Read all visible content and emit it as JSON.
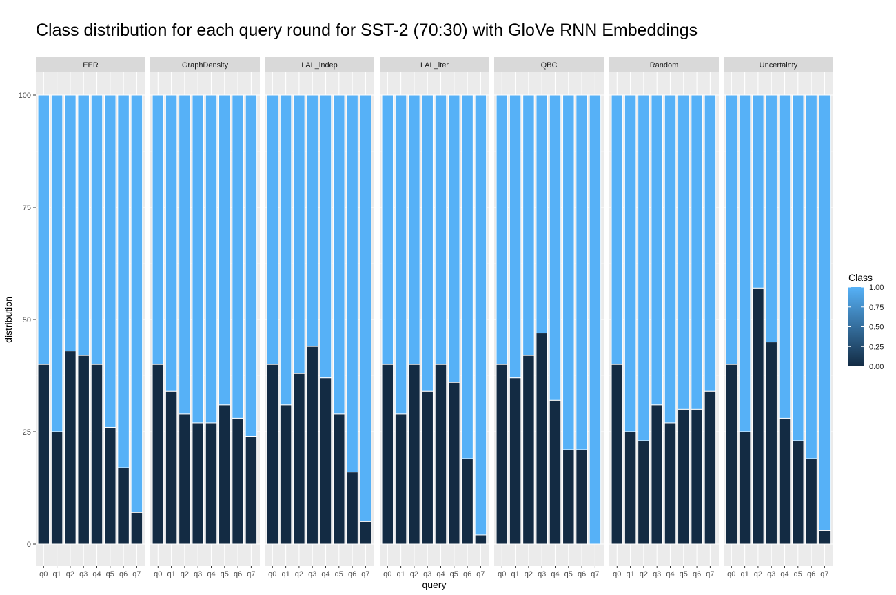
{
  "chart_data": {
    "type": "bar",
    "stacked": true,
    "faceted": true,
    "title": "Class distribution for each query round for SST-2 (70:30) with GloVe RNN Embeddings",
    "xlabel": "query",
    "ylabel": "distribution",
    "ylim": [
      0,
      100
    ],
    "yticks": [
      0,
      25,
      50,
      75,
      100
    ],
    "categories": [
      "q0",
      "q1",
      "q2",
      "q3",
      "q4",
      "q5",
      "q6",
      "q7"
    ],
    "fill_colors": {
      "class_0": "#132b43",
      "class_1": "#56b1f7"
    },
    "legend": {
      "title": "Class",
      "placement": "right",
      "ticks": [
        "1.00",
        "0.75",
        "0.50",
        "0.25",
        "0.00"
      ]
    },
    "facets": [
      {
        "name": "EER",
        "class0_values": [
          40,
          25,
          43,
          42,
          40,
          26,
          17,
          7
        ]
      },
      {
        "name": "GraphDensity",
        "class0_values": [
          40,
          34,
          29,
          27,
          27,
          31,
          28,
          24
        ]
      },
      {
        "name": "LAL_indep",
        "class0_values": [
          40,
          31,
          38,
          44,
          37,
          29,
          16,
          5
        ]
      },
      {
        "name": "LAL_iter",
        "class0_values": [
          40,
          29,
          40,
          34,
          40,
          36,
          19,
          2
        ]
      },
      {
        "name": "QBC",
        "class0_values": [
          40,
          37,
          42,
          47,
          32,
          21,
          21,
          0
        ]
      },
      {
        "name": "Random",
        "class0_values": [
          40,
          25,
          23,
          31,
          27,
          30,
          30,
          34
        ]
      },
      {
        "name": "Uncertainty",
        "class0_values": [
          40,
          25,
          57,
          45,
          28,
          23,
          19,
          3
        ]
      }
    ],
    "grid": true
  }
}
